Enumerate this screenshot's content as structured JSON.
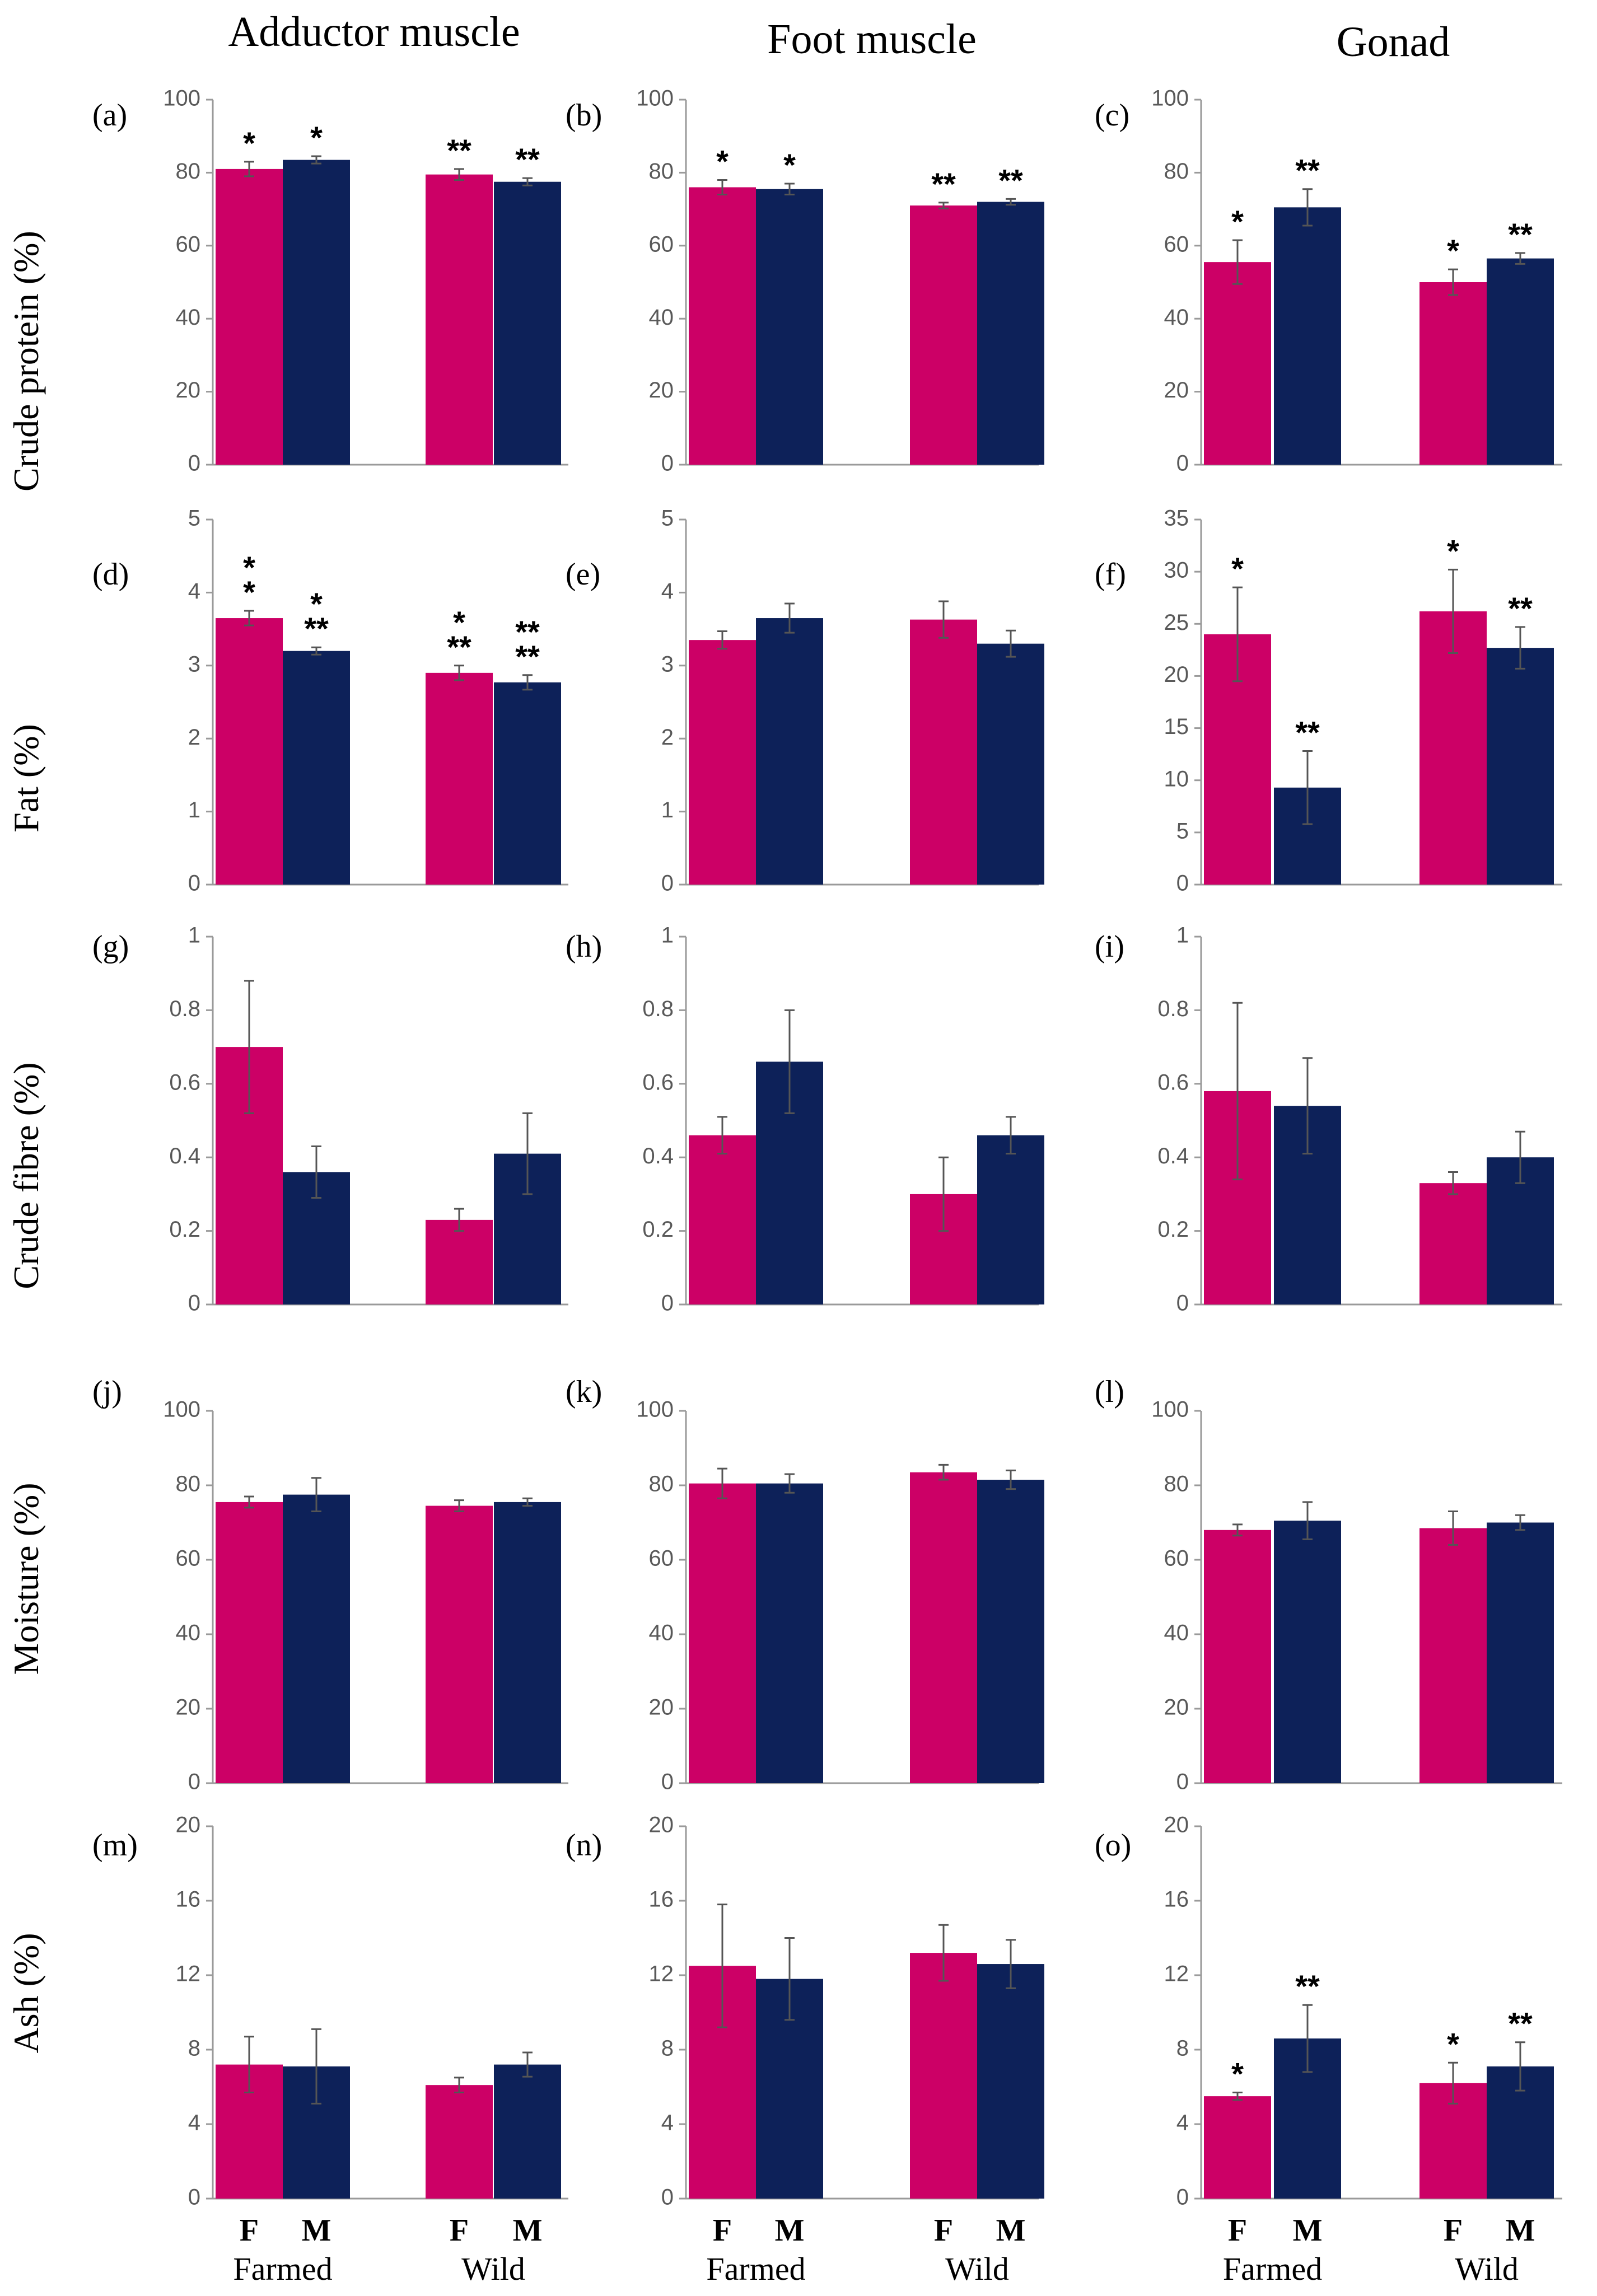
{
  "colors": {
    "female": "#cc0066",
    "male": "#0d2159",
    "axis": "#9a9a9a",
    "error": "#555555",
    "text": "#000000",
    "tick": "#595959"
  },
  "column_headers": [
    "Adductor muscle",
    "Foot muscle",
    "Gonad"
  ],
  "row_labels": [
    "Crude protein (%)",
    "Fat (%)",
    "Crude fibre (%)",
    "Moisture (%)",
    "Ash (%)"
  ],
  "bar_labels": [
    "F",
    "M",
    "F",
    "M"
  ],
  "groups": [
    "Farmed",
    "Wild"
  ],
  "chart_data": [
    {
      "id": "a",
      "panel_label": "(a)",
      "type": "bar",
      "ylim": [
        0,
        100
      ],
      "ticks": [
        "0",
        "20",
        "40",
        "60",
        "80",
        "100"
      ],
      "values": [
        81,
        83.5,
        79.5,
        77.5
      ],
      "errors": [
        2,
        1,
        1.5,
        1
      ],
      "annotations": [
        [
          "*"
        ],
        [
          "*"
        ],
        [
          "**"
        ],
        [
          "**"
        ]
      ]
    },
    {
      "id": "b",
      "panel_label": "(b)",
      "type": "bar",
      "ylim": [
        0,
        100
      ],
      "ticks": [
        "0",
        "20",
        "40",
        "60",
        "80",
        "100"
      ],
      "values": [
        76,
        75.5,
        71,
        72
      ],
      "errors": [
        2,
        1.5,
        0.8,
        0.8
      ],
      "annotations": [
        [
          "*"
        ],
        [
          "*"
        ],
        [
          "**"
        ],
        [
          "**"
        ]
      ]
    },
    {
      "id": "c",
      "panel_label": "(c)",
      "type": "bar",
      "ylim": [
        0,
        100
      ],
      "ticks": [
        "0",
        "20",
        "40",
        "60",
        "80",
        "100"
      ],
      "values": [
        55.5,
        70.5,
        50,
        56.5
      ],
      "errors": [
        6,
        5,
        3.5,
        1.5
      ],
      "annotations": [
        [
          "*"
        ],
        [
          "**"
        ],
        [
          "*"
        ],
        [
          "**"
        ]
      ]
    },
    {
      "id": "d",
      "panel_label": "(d)",
      "type": "bar",
      "ylim": [
        0,
        5
      ],
      "ticks": [
        "0",
        "1",
        "2",
        "3",
        "4",
        "5"
      ],
      "values": [
        3.65,
        3.2,
        2.9,
        2.77
      ],
      "errors": [
        0.1,
        0.05,
        0.1,
        0.1
      ],
      "annotations": [
        [
          "*",
          "*"
        ],
        [
          "*",
          "**"
        ],
        [
          "*",
          "**"
        ],
        [
          "**",
          "**"
        ]
      ]
    },
    {
      "id": "e",
      "panel_label": "(e)",
      "type": "bar",
      "ylim": [
        0,
        5
      ],
      "ticks": [
        "0",
        "1",
        "2",
        "3",
        "4",
        "5"
      ],
      "values": [
        3.35,
        3.65,
        3.63,
        3.3
      ],
      "errors": [
        0.12,
        0.2,
        0.25,
        0.18
      ],
      "annotations": [
        [],
        [],
        [],
        []
      ]
    },
    {
      "id": "f",
      "panel_label": "(f)",
      "type": "bar",
      "ylim": [
        0,
        35
      ],
      "ticks": [
        "0",
        "5",
        "10",
        "15",
        "20",
        "25",
        "30",
        "35"
      ],
      "values": [
        24,
        9.3,
        26.2,
        22.7
      ],
      "errors": [
        4.5,
        3.5,
        4,
        2
      ],
      "annotations": [
        [
          "*"
        ],
        [
          "**"
        ],
        [
          "*"
        ],
        [
          "**"
        ]
      ]
    },
    {
      "id": "g",
      "panel_label": "(g)",
      "type": "bar",
      "ylim": [
        0,
        1
      ],
      "ticks": [
        "0",
        "0.2",
        "0.4",
        "0.6",
        "0.8",
        "1"
      ],
      "values": [
        0.7,
        0.36,
        0.23,
        0.41
      ],
      "errors": [
        0.18,
        0.07,
        0.03,
        0.11
      ],
      "annotations": [
        [],
        [],
        [],
        []
      ]
    },
    {
      "id": "h",
      "panel_label": "(h)",
      "type": "bar",
      "ylim": [
        0,
        1
      ],
      "ticks": [
        "0",
        "0.2",
        "0.4",
        "0.6",
        "0.8",
        "1"
      ],
      "values": [
        0.46,
        0.66,
        0.3,
        0.46
      ],
      "errors": [
        0.05,
        0.14,
        0.1,
        0.05
      ],
      "annotations": [
        [],
        [],
        [],
        []
      ]
    },
    {
      "id": "i",
      "panel_label": "(i)",
      "type": "bar",
      "ylim": [
        0,
        1
      ],
      "ticks": [
        "0",
        "0.2",
        "0.4",
        "0.6",
        "0.8",
        "1"
      ],
      "values": [
        0.58,
        0.54,
        0.33,
        0.4
      ],
      "errors": [
        0.24,
        0.13,
        0.03,
        0.07
      ],
      "annotations": [
        [],
        [],
        [],
        []
      ]
    },
    {
      "id": "j",
      "panel_label": "(j)",
      "type": "bar",
      "ylim": [
        0,
        100
      ],
      "ticks": [
        "0",
        "20",
        "40",
        "60",
        "80",
        "100"
      ],
      "values": [
        75.5,
        77.5,
        74.5,
        75.5
      ],
      "errors": [
        1.5,
        4.5,
        1.5,
        1
      ],
      "annotations": [
        [],
        [],
        [],
        []
      ]
    },
    {
      "id": "k",
      "panel_label": "(k)",
      "type": "bar",
      "ylim": [
        0,
        100
      ],
      "ticks": [
        "0",
        "20",
        "40",
        "60",
        "80",
        "100"
      ],
      "values": [
        80.5,
        80.5,
        83.5,
        81.5
      ],
      "errors": [
        4,
        2.5,
        2,
        2.5
      ],
      "annotations": [
        [],
        [],
        [],
        []
      ]
    },
    {
      "id": "l",
      "panel_label": "(l)",
      "type": "bar",
      "ylim": [
        0,
        100
      ],
      "ticks": [
        "0",
        "20",
        "40",
        "60",
        "80",
        "100"
      ],
      "values": [
        68,
        70.5,
        68.5,
        70
      ],
      "errors": [
        1.5,
        5,
        4.5,
        2
      ],
      "annotations": [
        [],
        [],
        [],
        []
      ]
    },
    {
      "id": "m",
      "panel_label": "(m)",
      "type": "bar",
      "ylim": [
        0,
        20
      ],
      "ticks": [
        "0",
        "4",
        "8",
        "12",
        "16",
        "20"
      ],
      "values": [
        7.2,
        7.1,
        6.1,
        7.2
      ],
      "errors": [
        1.5,
        2,
        0.4,
        0.65
      ],
      "annotations": [
        [],
        [],
        [],
        []
      ]
    },
    {
      "id": "n",
      "panel_label": "(n)",
      "type": "bar",
      "ylim": [
        0,
        20
      ],
      "ticks": [
        "0",
        "4",
        "8",
        "12",
        "16",
        "20"
      ],
      "values": [
        12.5,
        11.8,
        13.2,
        12.6
      ],
      "errors": [
        3.3,
        2.2,
        1.5,
        1.3
      ],
      "annotations": [
        [],
        [],
        [],
        []
      ]
    },
    {
      "id": "o",
      "panel_label": "(o)",
      "type": "bar",
      "ylim": [
        0,
        20
      ],
      "ticks": [
        "0",
        "4",
        "8",
        "12",
        "16",
        "20"
      ],
      "values": [
        5.5,
        8.6,
        6.2,
        7.1
      ],
      "errors": [
        0.2,
        1.8,
        1.1,
        1.3
      ],
      "annotations": [
        [
          "*"
        ],
        [
          "**"
        ],
        [
          "*"
        ],
        [
          "**"
        ]
      ]
    }
  ]
}
